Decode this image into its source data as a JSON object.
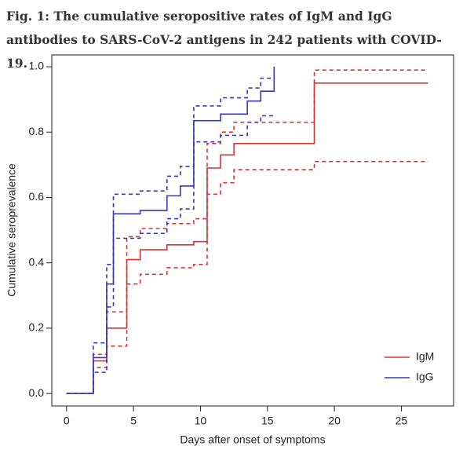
{
  "chart_data": {
    "type": "step",
    "title": "Fig. 1: The cumulative seropositive rates of IgM and IgG antibodies to SARS-CoV-2 antigens in 242 patients with COVID-19.",
    "x_label": "Days after onset of symptoms",
    "y_label": "Cumulative seroprevalence",
    "xlim": [
      -1.1,
      28.9
    ],
    "ylim": [
      -0.038,
      1.036
    ],
    "xticks": [
      0,
      5,
      10,
      15,
      20,
      25
    ],
    "yticks": [
      {
        "value": 0,
        "label": "0.0"
      },
      0.2,
      0.4,
      0.6,
      0.8,
      {
        "value": 1,
        "label": "1.0"
      }
    ],
    "legend": "bottom-right",
    "series": [
      {
        "name": "IgM",
        "color": "#e03030",
        "x": [
          0,
          2,
          3,
          4.5,
          5.5,
          7.5,
          9.5,
          10.5,
          11.5,
          12.5,
          18.5,
          27
        ],
        "values": [
          0,
          0.1,
          0.2,
          0.41,
          0.44,
          0.455,
          0.465,
          0.69,
          0.73,
          0.765,
          0.95,
          0.95
        ],
        "upper": [
          0,
          0.12,
          0.25,
          0.48,
          0.505,
          0.52,
          0.535,
          0.765,
          0.8,
          0.83,
          0.99,
          0.99
        ],
        "lower": [
          0,
          0.08,
          0.145,
          0.335,
          0.365,
          0.385,
          0.395,
          0.61,
          0.645,
          0.685,
          0.71,
          0.71
        ]
      },
      {
        "name": "IgG",
        "color": "#3535c8",
        "x": [
          0,
          2,
          3,
          3.5,
          5.5,
          7.5,
          8.5,
          9.5,
          11.5,
          13.5,
          14.5,
          15.5
        ],
        "values": [
          0,
          0.11,
          0.335,
          0.55,
          0.56,
          0.605,
          0.635,
          0.835,
          0.855,
          0.895,
          0.925,
          1.0
        ],
        "upper": [
          0,
          0.155,
          0.395,
          0.61,
          0.62,
          0.665,
          0.695,
          0.88,
          0.905,
          0.935,
          0.965,
          1.0
        ],
        "lower": [
          0,
          0.065,
          0.265,
          0.475,
          0.49,
          0.535,
          0.565,
          0.77,
          0.79,
          0.83,
          0.85,
          0.85
        ]
      }
    ]
  }
}
